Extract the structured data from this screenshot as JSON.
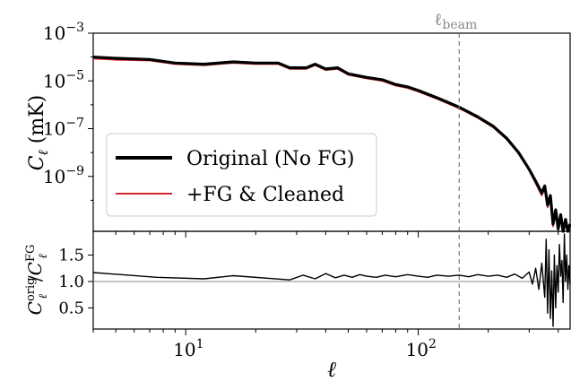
{
  "chart_data": [
    {
      "type": "line",
      "panel": "top",
      "ylabel": "C_ℓ (mK)",
      "ylabel_parts": {
        "base": "C",
        "sub": "ℓ",
        "rest": " (mK)"
      },
      "xscale": "log",
      "yscale": "log",
      "xlim": [
        4,
        450
      ],
      "ylim_exp": [
        -11.3,
        -3
      ],
      "ytick_exponents": [
        -3,
        -5,
        -7,
        -9
      ],
      "ytick_base": "10",
      "annotation": {
        "text_base": "ℓ",
        "text_sub": "beam",
        "x": 150
      },
      "legend": {
        "placement": "lower-left",
        "entries": [
          "Original (No FG)",
          "+FG & Cleaned"
        ]
      },
      "series": [
        {
          "name": "Original (No FG)",
          "color": "#000000",
          "x": [
            4,
            5,
            7,
            9,
            12,
            16,
            20,
            25,
            28,
            33,
            36,
            40,
            45,
            50,
            60,
            70,
            80,
            90,
            100,
            120,
            150,
            180,
            210,
            240,
            270,
            300,
            320,
            340,
            350,
            360,
            370,
            380,
            390,
            400,
            410,
            420,
            430,
            440,
            450
          ],
          "y_log10": [
            -4.0,
            -4.05,
            -4.1,
            -4.25,
            -4.3,
            -4.2,
            -4.25,
            -4.25,
            -4.45,
            -4.45,
            -4.3,
            -4.5,
            -4.45,
            -4.7,
            -4.85,
            -4.95,
            -5.15,
            -5.25,
            -5.4,
            -5.7,
            -6.1,
            -6.5,
            -6.9,
            -7.4,
            -8.0,
            -8.7,
            -9.2,
            -9.7,
            -9.4,
            -10.2,
            -9.8,
            -11.0,
            -10.4,
            -11.2,
            -10.6,
            -11.3,
            -10.8,
            -11.3,
            -11.0
          ]
        },
        {
          "name": "+FG & Cleaned",
          "color": "#d62728",
          "x": [
            4,
            5,
            7,
            9,
            12,
            16,
            20,
            25,
            28,
            33,
            36,
            40,
            45,
            50,
            60,
            70,
            80,
            90,
            100,
            120,
            150,
            180,
            210,
            240,
            270,
            300,
            320,
            340,
            350,
            360,
            370,
            380,
            390,
            400,
            410,
            420,
            430,
            440,
            450
          ],
          "y_log10": [
            -4.07,
            -4.12,
            -4.15,
            -4.3,
            -4.35,
            -4.25,
            -4.3,
            -4.3,
            -4.5,
            -4.5,
            -4.35,
            -4.55,
            -4.5,
            -4.75,
            -4.9,
            -5.0,
            -5.2,
            -5.3,
            -5.45,
            -5.75,
            -6.15,
            -6.55,
            -6.95,
            -7.45,
            -8.05,
            -8.75,
            -9.3,
            -9.8,
            -9.5,
            -10.3,
            -9.9,
            -11.1,
            -10.5,
            -11.25,
            -10.7,
            -11.3,
            -10.9,
            -11.3,
            -11.1
          ]
        }
      ]
    },
    {
      "type": "line",
      "panel": "bottom",
      "xlabel": "ℓ",
      "ylabel_parts": {
        "num_base": "C",
        "num_sub": "ℓ",
        "num_sup": "orig",
        "den_base": "C",
        "den_sub": "ℓ",
        "den_sup": "FG"
      },
      "xscale": "log",
      "xlim": [
        4,
        450
      ],
      "ylim": [
        0.1,
        1.95
      ],
      "yticks": [
        "0.5",
        "1.0",
        "1.5"
      ],
      "ytick_values": [
        0.5,
        1.0,
        1.5
      ],
      "xtick_exponents": [
        1,
        2
      ],
      "xtick_base": "10",
      "reference_line": 1.0,
      "series": [
        {
          "name": "",
          "color": "#000000",
          "x": [
            4,
            7.5,
            12,
            16,
            28,
            32,
            36,
            40,
            44,
            48,
            52,
            56,
            60,
            66,
            72,
            80,
            90,
            100,
            110,
            120,
            135,
            150,
            165,
            180,
            200,
            220,
            240,
            260,
            280,
            300,
            310,
            320,
            330,
            340,
            350,
            355,
            360,
            365,
            370,
            375,
            380,
            385,
            390,
            395,
            400,
            405,
            410,
            415,
            420,
            425,
            430,
            435,
            440,
            445,
            450
          ],
          "y": [
            1.17,
            1.08,
            1.05,
            1.11,
            1.03,
            1.12,
            1.05,
            1.15,
            1.07,
            1.12,
            1.08,
            1.13,
            1.1,
            1.08,
            1.12,
            1.09,
            1.13,
            1.1,
            1.08,
            1.12,
            1.1,
            1.12,
            1.09,
            1.13,
            1.1,
            1.12,
            1.08,
            1.14,
            1.06,
            1.18,
            0.95,
            1.25,
            0.85,
            1.35,
            0.7,
            1.8,
            0.4,
            1.6,
            0.3,
            1.2,
            0.15,
            1.5,
            0.5,
            1.3,
            0.8,
            1.7,
            1.1,
            1.4,
            0.6,
            1.9,
            1.0,
            1.5,
            0.85,
            1.3,
            0.95
          ]
        }
      ]
    }
  ]
}
